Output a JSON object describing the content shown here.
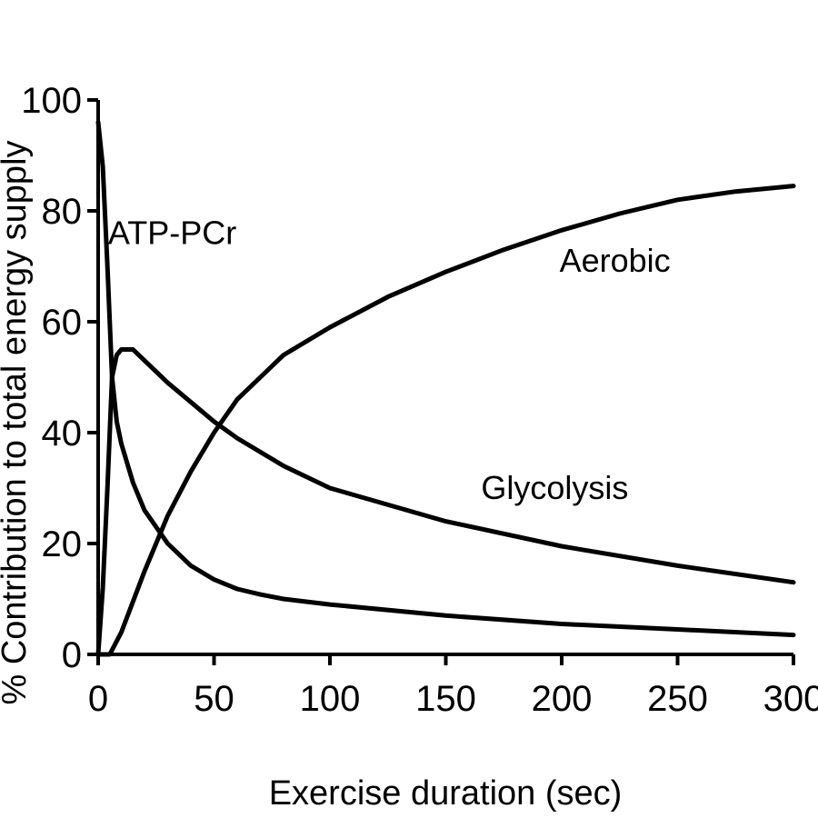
{
  "chart_data": {
    "type": "line",
    "xlabel": "Exercise duration (sec)",
    "ylabel": "% Contribution to total energy supply",
    "xlim": [
      0,
      300
    ],
    "ylim": [
      0,
      100
    ],
    "xticks": [
      0,
      50,
      100,
      150,
      200,
      250,
      300
    ],
    "yticks": [
      0,
      20,
      40,
      60,
      80,
      100
    ],
    "grid": false,
    "series": [
      {
        "name": "ATP-PCr",
        "x": [
          0,
          2,
          4,
          6,
          8,
          10,
          15,
          20,
          30,
          40,
          50,
          60,
          70,
          80,
          100,
          150,
          200,
          250,
          300
        ],
        "y": [
          96,
          88,
          70,
          50,
          42,
          38,
          31,
          26,
          20,
          16,
          13.5,
          11.8,
          10.8,
          10,
          9,
          7,
          5.5,
          4.5,
          3.5
        ]
      },
      {
        "name": "Glycolysis",
        "x": [
          0,
          2,
          4,
          6,
          8,
          10,
          15,
          20,
          30,
          40,
          50,
          60,
          80,
          100,
          150,
          200,
          250,
          300
        ],
        "y": [
          0,
          12,
          30,
          50,
          54,
          55,
          55,
          53,
          49,
          45.5,
          42,
          39,
          34,
          30,
          24,
          19.5,
          16,
          13
        ]
      },
      {
        "name": "Aerobic",
        "x": [
          0,
          5,
          10,
          20,
          30,
          40,
          50,
          60,
          70,
          80,
          100,
          125,
          150,
          175,
          200,
          225,
          250,
          275,
          300
        ],
        "y": [
          0,
          0,
          4,
          15,
          25,
          33,
          40,
          46,
          50,
          54,
          59,
          64.5,
          69,
          73,
          76.5,
          79.5,
          82,
          83.5,
          84.5
        ]
      }
    ],
    "annotations": [
      {
        "text": "ATP-PCr",
        "x": 32,
        "y": 76
      },
      {
        "text": "Aerobic",
        "x": 223,
        "y": 71
      },
      {
        "text": "Glycolysis",
        "x": 197,
        "y": 30
      }
    ]
  }
}
